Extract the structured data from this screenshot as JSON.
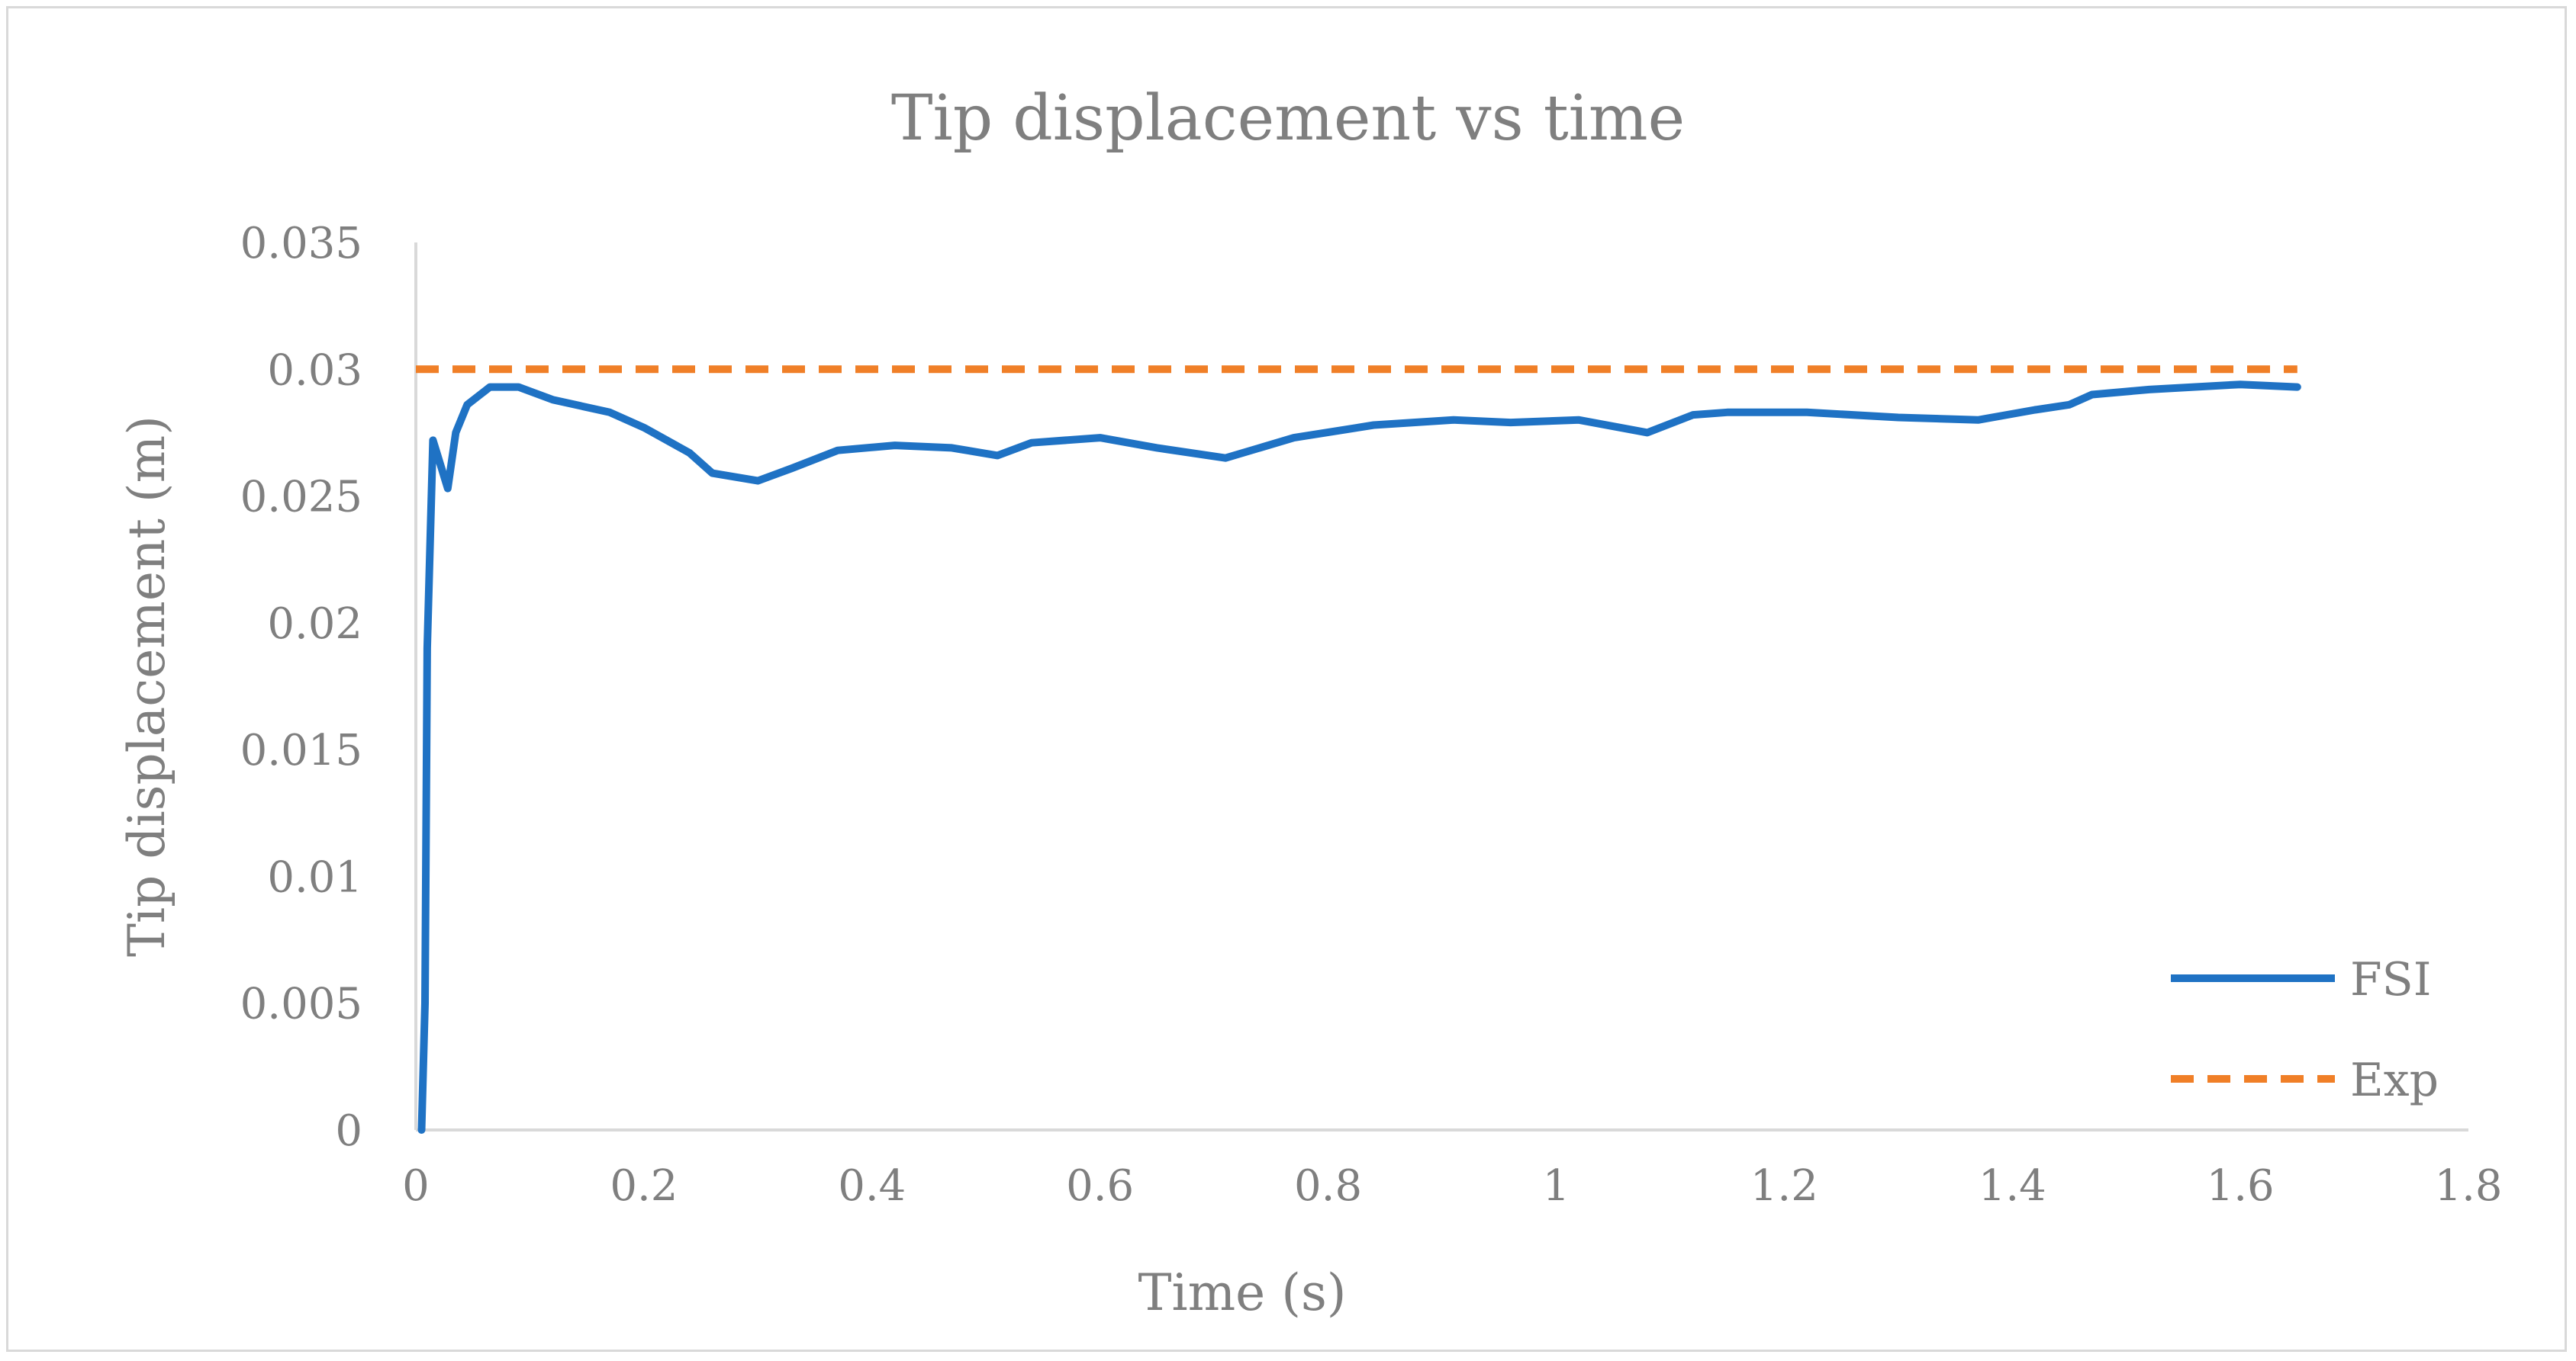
{
  "chart_data": {
    "type": "line",
    "title": "Tip displacement vs time",
    "xlabel": "Time (s)",
    "ylabel": "Tip displacement (m)",
    "xlim": [
      0,
      1.8
    ],
    "ylim": [
      0,
      0.035
    ],
    "x_ticks": [
      "0",
      "0.2",
      "0.4",
      "0.6",
      "0.8",
      "1",
      "1.2",
      "1.4",
      "1.6",
      "1.8"
    ],
    "y_ticks": [
      "0",
      "0.005",
      "0.01",
      "0.015",
      "0.02",
      "0.025",
      "0.03",
      "0.035"
    ],
    "x_tick_values": [
      0,
      0.2,
      0.4,
      0.6,
      0.8,
      1.0,
      1.2,
      1.4,
      1.6,
      1.8
    ],
    "y_tick_values": [
      0,
      0.005,
      0.01,
      0.015,
      0.02,
      0.025,
      0.03,
      0.035
    ],
    "grid": false,
    "legend_position": "bottom-right",
    "series": [
      {
        "name": "FSI",
        "color": "#1f72c4",
        "style": "solid",
        "points": [
          [
            0.005,
            0.0
          ],
          [
            0.008,
            0.005
          ],
          [
            0.01,
            0.019
          ],
          [
            0.015,
            0.0272
          ],
          [
            0.028,
            0.0253
          ],
          [
            0.035,
            0.0275
          ],
          [
            0.045,
            0.0286
          ],
          [
            0.065,
            0.0293
          ],
          [
            0.09,
            0.0293
          ],
          [
            0.12,
            0.0288
          ],
          [
            0.17,
            0.0283
          ],
          [
            0.2,
            0.0277
          ],
          [
            0.24,
            0.0267
          ],
          [
            0.26,
            0.0259
          ],
          [
            0.3,
            0.0256
          ],
          [
            0.33,
            0.0261
          ],
          [
            0.37,
            0.0268
          ],
          [
            0.42,
            0.027
          ],
          [
            0.47,
            0.0269
          ],
          [
            0.51,
            0.0266
          ],
          [
            0.54,
            0.0271
          ],
          [
            0.6,
            0.0273
          ],
          [
            0.65,
            0.0269
          ],
          [
            0.71,
            0.0265
          ],
          [
            0.77,
            0.0273
          ],
          [
            0.84,
            0.0278
          ],
          [
            0.91,
            0.028
          ],
          [
            0.96,
            0.0279
          ],
          [
            1.02,
            0.028
          ],
          [
            1.08,
            0.0275
          ],
          [
            1.12,
            0.0282
          ],
          [
            1.15,
            0.0283
          ],
          [
            1.22,
            0.0283
          ],
          [
            1.3,
            0.0281
          ],
          [
            1.37,
            0.028
          ],
          [
            1.42,
            0.0284
          ],
          [
            1.45,
            0.0286
          ],
          [
            1.47,
            0.029
          ],
          [
            1.52,
            0.0292
          ],
          [
            1.6,
            0.0294
          ],
          [
            1.65,
            0.0293
          ]
        ]
      },
      {
        "name": "Exp",
        "color": "#f07f27",
        "style": "dashed",
        "points": [
          [
            0.0,
            0.03
          ],
          [
            1.65,
            0.03
          ]
        ]
      }
    ]
  }
}
